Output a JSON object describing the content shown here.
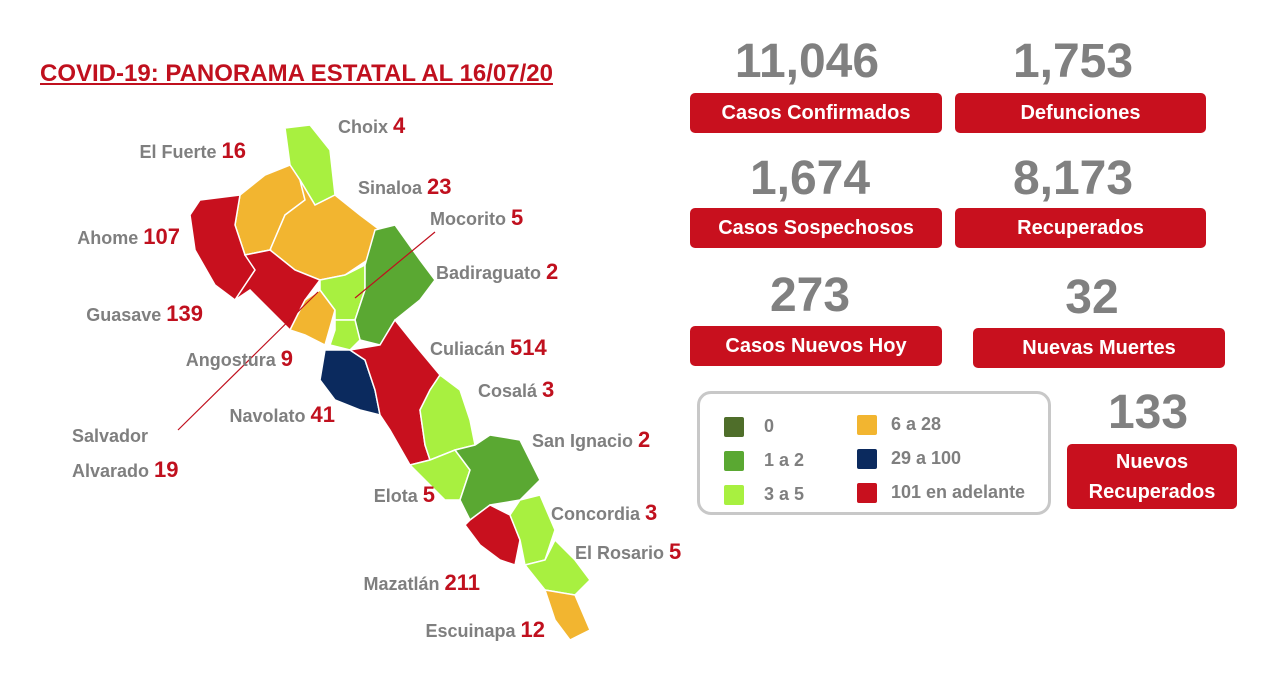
{
  "title": "COVID-19: PANORAMA ESTATAL AL 16/07/20",
  "municipalities": [
    {
      "name": "Choix",
      "cases": 4
    },
    {
      "name": "El Fuerte",
      "cases": 16
    },
    {
      "name": "Sinaloa",
      "cases": 23
    },
    {
      "name": "Mocorito",
      "cases": 5
    },
    {
      "name": "Ahome",
      "cases": 107
    },
    {
      "name": "Badiraguato",
      "cases": 2
    },
    {
      "name": "Guasave",
      "cases": 139
    },
    {
      "name": "Culiacán",
      "cases": 514
    },
    {
      "name": "Angostura",
      "cases": 9
    },
    {
      "name": "Cosalá",
      "cases": 3
    },
    {
      "name": "Navolato",
      "cases": 41
    },
    {
      "name": "Salvador Alvarado",
      "cases": 19
    },
    {
      "name": "San Ignacio",
      "cases": 2
    },
    {
      "name": "Elota",
      "cases": 5
    },
    {
      "name": "Concordia",
      "cases": 3
    },
    {
      "name": "El Rosario",
      "cases": 5
    },
    {
      "name": "Mazatlán",
      "cases": 211
    },
    {
      "name": "Escuinapa",
      "cases": 12
    }
  ],
  "stats": [
    {
      "value": "11,046",
      "label": "Casos Confirmados"
    },
    {
      "value": "1,753",
      "label": "Defunciones"
    },
    {
      "value": "1,674",
      "label": "Casos Sospechosos"
    },
    {
      "value": "8,173",
      "label": "Recuperados"
    },
    {
      "value": "273",
      "label": "Casos Nuevos Hoy"
    },
    {
      "value": "32",
      "label": "Nuevas Muertes"
    },
    {
      "value": "133",
      "label": "Nuevos Recuperados"
    }
  ],
  "legend": [
    {
      "label": "0",
      "color": "#4f6e2a"
    },
    {
      "label": "1 a 2",
      "color": "#5aa832"
    },
    {
      "label": "3 a 5",
      "color": "#a8f040"
    },
    {
      "label": "6 a 28",
      "color": "#f2b530"
    },
    {
      "label": "29 a 100",
      "color": "#0b2a5e"
    },
    {
      "label": "101 en adelante",
      "color": "#c8101e"
    }
  ]
}
